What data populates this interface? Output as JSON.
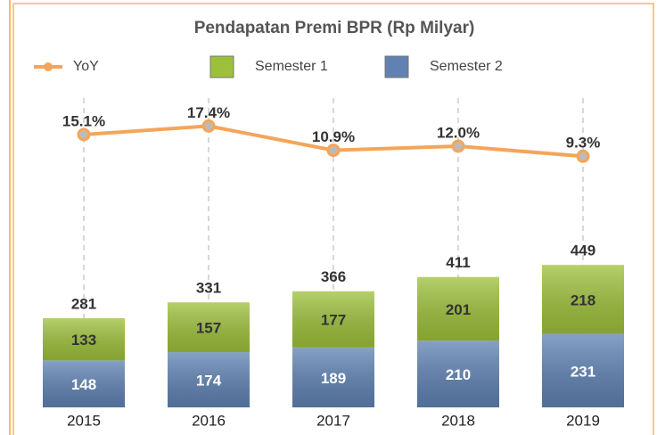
{
  "chart_data": {
    "type": "bar",
    "title": "Pendapatan Premi BPR (Rp Milyar)",
    "categories": [
      "2015",
      "2016",
      "2017",
      "2018",
      "2019"
    ],
    "series": [
      {
        "name": "Semester 2",
        "color": "#5f82b3",
        "values": [
          148,
          174,
          189,
          210,
          231
        ]
      },
      {
        "name": "Semester 1",
        "color": "#9dc03a",
        "values": [
          133,
          157,
          177,
          201,
          218
        ]
      },
      {
        "name": "YoY",
        "type": "line",
        "axis": "y2",
        "color": "#f5a55a",
        "values": [
          15.1,
          17.4,
          10.9,
          12.0,
          9.3
        ],
        "value_labels": [
          "15.1%",
          "17.4%",
          "10.9%",
          "12.0%",
          "9.3%"
        ]
      }
    ],
    "totals": [
      281,
      331,
      366,
      411,
      449
    ],
    "stacked": true,
    "ylim": [
      0,
      1200
    ],
    "y2lim": [
      -58,
      44
    ]
  }
}
